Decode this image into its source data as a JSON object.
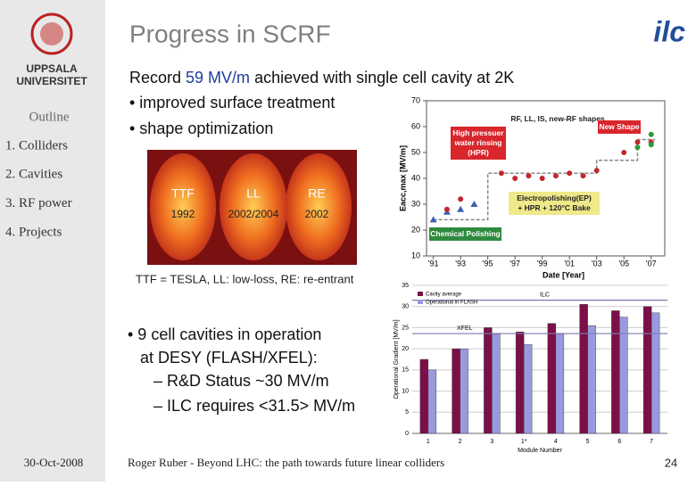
{
  "header": {
    "title": "Progress in SCRF",
    "logo": "ilc"
  },
  "sidebar": {
    "logo_lines": [
      "UPPSALA",
      "UNIVERSITET"
    ],
    "outline_title": "Outline",
    "items": [
      "1. Colliders",
      "2. Cavities",
      "3. RF power",
      "4. Projects"
    ],
    "date": "30-Oct-2008"
  },
  "body": {
    "record": {
      "before": "Record ",
      "highlight": "59 MV/m",
      "after": " achieved with single cell cavity at 2K"
    },
    "bullets": [
      "• improved surface treatment",
      "• shape optimization"
    ],
    "cavity_image": {
      "labels": [
        {
          "name": "TTF",
          "year": "1992"
        },
        {
          "name": "LL",
          "year": "2002/2004"
        },
        {
          "name": "RE",
          "year": "2002"
        }
      ],
      "caption": "TTF = TESLA, LL: low-loss, RE: re-entrant"
    },
    "bullets2": {
      "lines": [
        "• 9 cell cavities in operation",
        "at DESY (FLASH/XFEL):"
      ],
      "sub": [
        "– R&D Status ~30 MV/m",
        "– ILC requires <31.5> MV/m"
      ]
    }
  },
  "chart_data": [
    {
      "type": "scatter",
      "xlabel": "Date [Year]",
      "ylabel": "Eacc,max [MV/m]",
      "xlim": [
        1990.5,
        2008
      ],
      "xticks": [
        {
          "value": 1991,
          "label": "'91"
        },
        {
          "value": 1993,
          "label": "'93"
        },
        {
          "value": 1995,
          "label": "'95"
        },
        {
          "value": 1997,
          "label": "'97"
        },
        {
          "value": 1999,
          "label": "'99"
        },
        {
          "value": 2001,
          "label": "'01"
        },
        {
          "value": 2003,
          "label": "'03"
        },
        {
          "value": 2005,
          "label": "'05"
        },
        {
          "value": 2007,
          "label": "'07"
        }
      ],
      "ylim": [
        10,
        70
      ],
      "yticks": [
        10,
        20,
        30,
        40,
        50,
        60,
        70
      ],
      "trend": {
        "color": "#888888",
        "x": [
          1991,
          1995,
          1995,
          2003,
          2003,
          2006,
          2006,
          2007.3
        ],
        "values": [
          24,
          24,
          42,
          42,
          47,
          47,
          55,
          55
        ]
      },
      "series": [
        {
          "color": "#3a5fb0",
          "marker": "triangle",
          "x": [
            1991,
            1992,
            1993,
            1994
          ],
          "values": [
            24,
            27,
            28,
            30
          ]
        },
        {
          "color": "#c0282e",
          "marker": "circle",
          "x": [
            1992,
            1993,
            1996,
            1997,
            1998,
            1999,
            2000,
            2001,
            2002,
            2003,
            2005,
            2006,
            2007
          ],
          "values": [
            28,
            32,
            42,
            40,
            41,
            40,
            41,
            42,
            41,
            43,
            50,
            54,
            54
          ]
        },
        {
          "color": "#2f9a3c",
          "marker": "circle",
          "x": [
            2006,
            2007,
            2007
          ],
          "values": [
            52,
            53,
            57
          ]
        }
      ],
      "annotations": [
        {
          "lines": [
            "RF, LL, IS, new-RF shapes"
          ]
        },
        {
          "lines": [
            "High pressuer",
            "water rinsing",
            "(HPR)"
          ]
        },
        {
          "lines": [
            "New Shape"
          ]
        },
        {
          "lines": [
            "Electropolishing(EP)",
            "+ HPR + 120°C Bake"
          ]
        },
        {
          "lines": [
            "Chemical Polishing"
          ]
        }
      ]
    },
    {
      "type": "bar",
      "xlabel": "Module Number",
      "ylabel": "Operational Gradient [MV/m]",
      "categories": [
        "1",
        "2",
        "3",
        "1*",
        "4",
        "5",
        "6",
        "7"
      ],
      "series": [
        {
          "name": "Cavity average",
          "color": "#7b1048",
          "values": [
            17.5,
            20,
            25,
            24,
            26,
            30.5,
            29,
            30
          ]
        },
        {
          "name": "Operational in FLASH",
          "color": "#9b99dd",
          "values": [
            15,
            20,
            23.5,
            21,
            23.5,
            25.5,
            27.5,
            28.5
          ]
        }
      ],
      "ylim": [
        0,
        35
      ],
      "yticks": [
        0,
        5,
        10,
        15,
        20,
        25,
        30,
        35
      ],
      "grid": true,
      "reference_lines": [
        {
          "label": "ILC",
          "value": 31.5
        },
        {
          "label": "XFEL",
          "value": 23.6
        }
      ]
    }
  ],
  "footer": {
    "text": "Roger Ruber - Beyond LHC: the path towards future linear colliders",
    "page": "24"
  }
}
